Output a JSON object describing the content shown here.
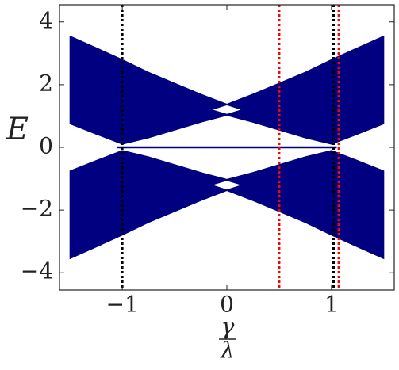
{
  "chart_data": {
    "type": "spectrum",
    "y_label": "E",
    "x_label": {
      "numerator": "γ",
      "denominator": "λ"
    },
    "xlim": [
      -1.6,
      1.6
    ],
    "ylim": [
      -4.55,
      4.55
    ],
    "xticks": [
      {
        "value": -1,
        "label": "−1"
      },
      0,
      1
    ],
    "yticks": [
      {
        "value": -4,
        "label": "−4"
      },
      {
        "value": -2,
        "label": "−2"
      },
      0,
      2,
      4
    ],
    "bands": [
      {
        "color": "#000080",
        "x": [
          -1.5,
          -1.25,
          -1,
          -0.75,
          -0.5,
          -0.25,
          0,
          0.25,
          0.5,
          0.75,
          1,
          1.25,
          1.5
        ],
        "upper": [
          3.55,
          3.18,
          2.8,
          2.4,
          2.05,
          1.7,
          1.38,
          1.7,
          2.05,
          2.4,
          2.8,
          3.18,
          3.55
        ],
        "lower": [
          0.75,
          0.42,
          0.1,
          0.3,
          0.55,
          0.8,
          1.02,
          0.8,
          0.55,
          0.3,
          0.1,
          0.42,
          0.75
        ]
      },
      {
        "color": "#000080",
        "x": [
          -1.5,
          -1.25,
          -1,
          -0.75,
          -0.5,
          -0.25,
          0,
          0.25,
          0.5,
          0.75,
          1,
          1.25,
          1.5
        ],
        "upper": [
          -0.75,
          -0.42,
          -0.1,
          -0.3,
          -0.55,
          -0.8,
          -1.02,
          -0.8,
          -0.55,
          -0.3,
          -0.1,
          -0.42,
          -0.75
        ],
        "lower": [
          -3.55,
          -3.18,
          -2.8,
          -2.4,
          -2.05,
          -1.7,
          -1.38,
          -1.7,
          -2.05,
          -2.4,
          -2.8,
          -3.18,
          -3.55
        ]
      },
      {
        "color": "#ffffff",
        "x": [
          -0.12,
          0,
          0.12
        ],
        "upper": [
          1.2,
          1.33,
          1.2
        ],
        "lower": [
          1.2,
          1.08,
          1.2
        ]
      },
      {
        "color": "#ffffff",
        "x": [
          -0.12,
          0,
          0.12
        ],
        "upper": [
          -1.2,
          -1.08,
          -1.2
        ],
        "lower": [
          -1.2,
          -1.33,
          -1.2
        ]
      }
    ],
    "lines": [
      {
        "color": "#000080",
        "x": [
          -1.05,
          1.05
        ],
        "values": [
          0,
          0
        ]
      }
    ],
    "vlines": [
      {
        "x": -1,
        "color": "#000000"
      },
      {
        "x": 1.02,
        "color": "#000000"
      },
      {
        "x": 0.5,
        "color": "#ff0000"
      },
      {
        "x": 1.07,
        "color": "#ff0000"
      }
    ]
  }
}
